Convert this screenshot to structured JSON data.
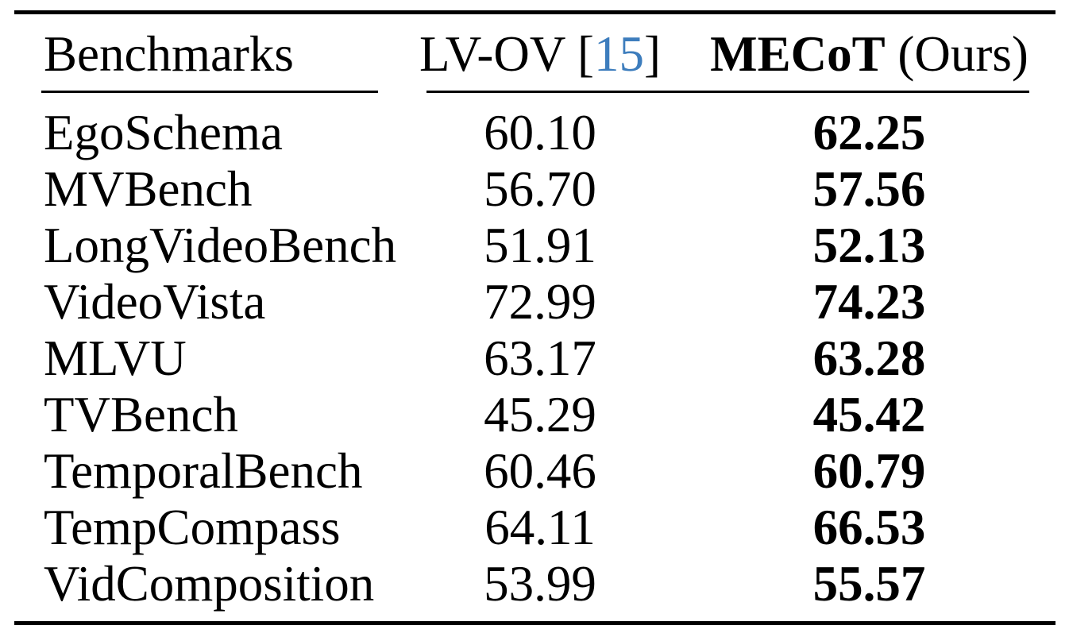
{
  "colors": {
    "text": "#000000",
    "background": "#ffffff",
    "citation_blue": "#3d7dbd",
    "rule_black": "#000000"
  },
  "table": {
    "header": {
      "benchmarks": "Benchmarks",
      "lvov_label": "LV-OV",
      "lvov_cite_open": " [",
      "lvov_cite": "15",
      "lvov_cite_close": "]",
      "mecot_label": "MECoT",
      "mecot_suffix": " (Ours)"
    },
    "rows": [
      {
        "benchmark": "EgoSchema",
        "lvov": "60.10",
        "mecot": "62.25"
      },
      {
        "benchmark": "MVBench",
        "lvov": "56.70",
        "mecot": "57.56"
      },
      {
        "benchmark": "LongVideoBench",
        "lvov": "51.91",
        "mecot": "52.13"
      },
      {
        "benchmark": "VideoVista",
        "lvov": "72.99",
        "mecot": "74.23"
      },
      {
        "benchmark": "MLVU",
        "lvov": "63.17",
        "mecot": "63.28"
      },
      {
        "benchmark": "TVBench",
        "lvov": "45.29",
        "mecot": "45.42"
      },
      {
        "benchmark": "TemporalBench",
        "lvov": "60.46",
        "mecot": "60.79"
      },
      {
        "benchmark": "TempCompass",
        "lvov": "64.11",
        "mecot": "66.53"
      },
      {
        "benchmark": "VidComposition",
        "lvov": "53.99",
        "mecot": "55.57"
      }
    ]
  }
}
